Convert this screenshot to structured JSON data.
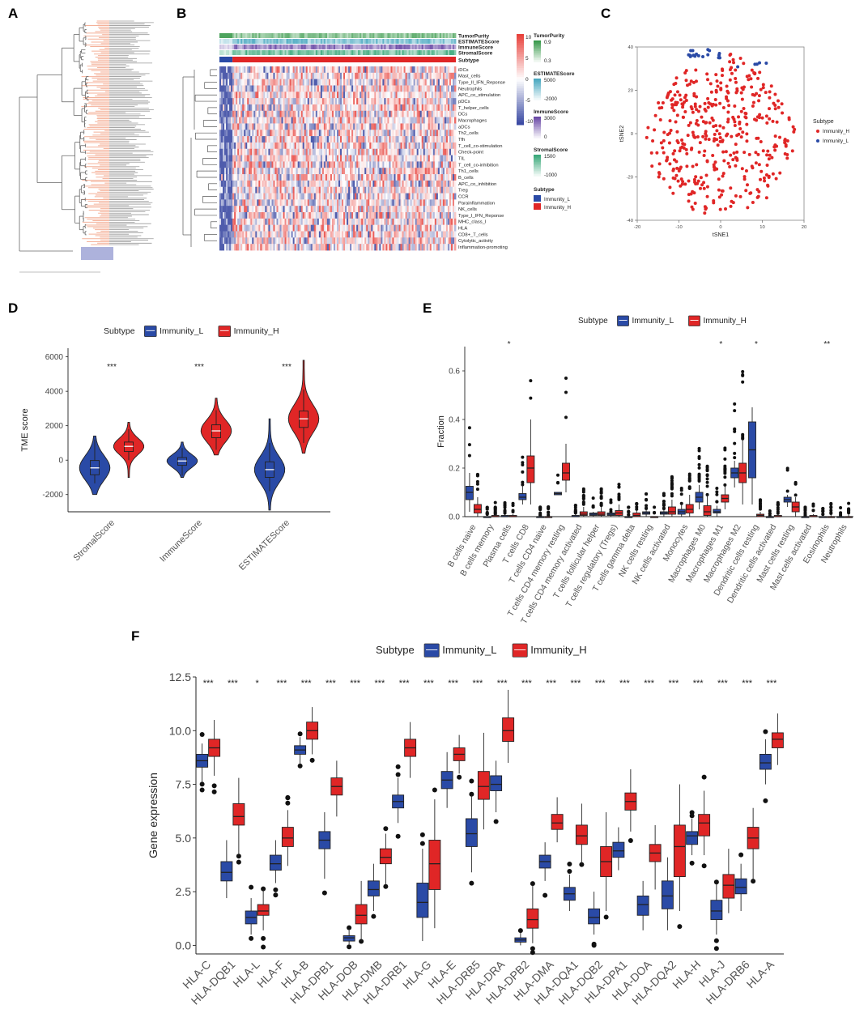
{
  "panel_labels": [
    "A",
    "B",
    "C",
    "D",
    "E",
    "F"
  ],
  "colors": {
    "low": "#2a4aa6",
    "high": "#e02626",
    "heat_low": "#3b4aa3",
    "heat_mid": "#ffffff",
    "heat_high": "#e8423c",
    "purity": "#3a9a4c",
    "estimate": "#4aa8c0",
    "immune": "#6a4aa6",
    "stromal": "#3aa87a",
    "tree_peach": "#f4b199",
    "tree_blue": "#7c83c6"
  },
  "panel_b": {
    "annotation_tracks": [
      "TumorPurity",
      "ESTIMATEScore",
      "ImmuneScore",
      "StromalScore",
      "Subtype"
    ],
    "rows": [
      "iDCs",
      "Mast_cells",
      "Type_II_IFN_Reponse",
      "Neutrophils",
      "APC_co_stimulation",
      "pDCs",
      "T_helper_cells",
      "DCs",
      "Macrophages",
      "aDCs",
      "Th2_cells",
      "Tfh",
      "T_cell_co-stimulation",
      "Check-point",
      "TIL",
      "T_cell_co-inhibition",
      "Th1_cells",
      "B_cells",
      "APC_co_inhibition",
      "Treg",
      "CCR",
      "Parainflammation",
      "NK_cells",
      "Type_I_IFN_Reponse",
      "MHC_class_I",
      "HLA",
      "CD8+_T_cells",
      "Cytolytic_activity",
      "Inflammation-promoting"
    ],
    "scale": {
      "ticks": [
        "10",
        "5",
        "0",
        "-5",
        "-10"
      ]
    },
    "legends": [
      {
        "title": "TumorPurity",
        "ticks": [
          "0.9",
          "0.3"
        ]
      },
      {
        "title": "ESTIMATEScore",
        "ticks": [
          "5000",
          "-2000"
        ]
      },
      {
        "title": "ImmuneScore",
        "ticks": [
          "3000",
          "0"
        ]
      },
      {
        "title": "StromalScore",
        "ticks": [
          "1500",
          "-1000"
        ]
      },
      {
        "title": "Subtype",
        "items": [
          "Immunity_L",
          "Immunity_H"
        ]
      }
    ]
  },
  "chart_data": [
    {
      "panel": "C",
      "type": "scatter",
      "xlabel": "tSNE1",
      "ylabel": "tSNE2",
      "xlim": [
        -20,
        20
      ],
      "ylim": [
        -40,
        40
      ],
      "xticks": [
        -20,
        -10,
        0,
        10,
        20
      ],
      "yticks": [
        -40,
        -20,
        0,
        20,
        40
      ],
      "legend_title": "Subtype",
      "series": [
        {
          "name": "Immunity_H",
          "color": "#e02626",
          "n_points": 430,
          "center": [
            0,
            -2
          ],
          "spread": [
            14,
            30
          ]
        },
        {
          "name": "Immunity_L",
          "color": "#2a4aa6",
          "n_points": 24,
          "center": [
            -4,
            37
          ],
          "spread": [
            4,
            2
          ]
        }
      ]
    },
    {
      "panel": "D",
      "type": "violin",
      "ylabel": "TME score",
      "ylim": [
        -3000,
        6500
      ],
      "yticks": [
        -2000,
        0,
        2000,
        4000,
        6000
      ],
      "legend_title": "Subtype",
      "legend_items": [
        "Immunity_L",
        "Immunity_H"
      ],
      "categories": [
        "StromalScore",
        "ImmuneScore",
        "ESTIMATEScore"
      ],
      "significance": [
        "***",
        "***",
        "***"
      ],
      "series": [
        {
          "name": "Immunity_L",
          "box": [
            [
              -1350,
              -850,
              -450,
              -20,
              1200
            ],
            [
              -900,
              -300,
              -50,
              150,
              700
            ],
            [
              -1800,
              -1000,
              -550,
              -100,
              1000
            ]
          ],
          "range": [
            [
              -2000,
              1400
            ],
            [
              -1000,
              1050
            ],
            [
              -2900,
              2400
            ]
          ]
        },
        {
          "name": "Immunity_H",
          "box": [
            [
              0,
              500,
              800,
              1050,
              1800
            ],
            [
              600,
              1300,
              1700,
              2050,
              2900
            ],
            [
              1000,
              1900,
              2400,
              2850,
              4100
            ]
          ],
          "range": [
            [
              -1000,
              2200
            ],
            [
              300,
              3600
            ],
            [
              400,
              5800
            ]
          ]
        }
      ]
    },
    {
      "panel": "E",
      "type": "box",
      "ylabel": "Fraction",
      "ylim": [
        0,
        0.7
      ],
      "yticks": [
        0.0,
        0.2,
        0.4,
        0.6
      ],
      "legend_title": "Subtype",
      "legend_items": [
        "Immunity_L",
        "Immunity_H"
      ],
      "categories": [
        "B cells naive",
        "B cells memory",
        "Plasma cells",
        "T cells CD8",
        "T cells CD4 naive",
        "T cells CD4 memory resting",
        "T cells CD4 memory activated",
        "T cells follicular helper",
        "T cells regulatory (Tregs)",
        "T cells gamma delta",
        "NK cells resting",
        "NK cells activated",
        "Monocytes",
        "Macrophages M0",
        "Macrophages M1",
        "Macrophages M2",
        "Dendritic cells resting",
        "Dendritic cells activated",
        "Mast cells resting",
        "Mast cells activated",
        "Eosinophils",
        "Neutrophils"
      ],
      "significance": [
        "",
        "",
        "*",
        "",
        "",
        "",
        "",
        "",
        "",
        "",
        "",
        "",
        "",
        "",
        "*",
        "",
        "*",
        "",
        "",
        "",
        "**",
        ""
      ],
      "series": [
        {
          "name": "Immunity_L",
          "box": [
            [
              0.02,
              0.07,
              0.1,
              0.125,
              0.18
            ],
            [
              0,
              0,
              0,
              0,
              0
            ],
            [
              0,
              0,
              0,
              0.005,
              0.01
            ],
            [
              0.05,
              0.07,
              0.08,
              0.095,
              0.13
            ],
            [
              0,
              0,
              0,
              0,
              0
            ],
            [
              0.09,
              0.09,
              0.095,
              0.1,
              0.1
            ],
            [
              0,
              0,
              0,
              0.005,
              0.01
            ],
            [
              0,
              0.005,
              0.01,
              0.015,
              0.02
            ],
            [
              0,
              0.005,
              0.01,
              0.015,
              0.02
            ],
            [
              0,
              0,
              0,
              0,
              0
            ],
            [
              0,
              0.01,
              0.015,
              0.02,
              0.03
            ],
            [
              0,
              0.01,
              0.015,
              0.02,
              0.03
            ],
            [
              0,
              0.01,
              0.02,
              0.03,
              0.05
            ],
            [
              0.03,
              0.06,
              0.08,
              0.1,
              0.13
            ],
            [
              0,
              0.015,
              0.02,
              0.03,
              0.045
            ],
            [
              0.12,
              0.16,
              0.18,
              0.2,
              0.23
            ],
            [
              0.05,
              0.16,
              0.275,
              0.39,
              0.45
            ],
            [
              0,
              0,
              0,
              0,
              0
            ],
            [
              0.04,
              0.06,
              0.07,
              0.08,
              0.09
            ],
            [
              0,
              0,
              0,
              0,
              0
            ],
            [
              0,
              0,
              0,
              0,
              0
            ],
            [
              0,
              0,
              0,
              0,
              0
            ]
          ]
        },
        {
          "name": "Immunity_H",
          "box": [
            [
              0,
              0.015,
              0.03,
              0.05,
              0.08
            ],
            [
              0,
              0,
              0,
              0.005,
              0.01
            ],
            [
              0,
              0,
              0,
              0.005,
              0.01
            ],
            [
              0.05,
              0.14,
              0.2,
              0.25,
              0.4
            ],
            [
              0,
              0,
              0,
              0,
              0
            ],
            [
              0.1,
              0.15,
              0.18,
              0.22,
              0.3
            ],
            [
              0,
              0.005,
              0.01,
              0.02,
              0.04
            ],
            [
              0,
              0.005,
              0.01,
              0.02,
              0.04
            ],
            [
              0,
              0.005,
              0.015,
              0.025,
              0.05
            ],
            [
              0,
              0,
              0.005,
              0.015,
              0.03
            ],
            [
              0,
              0,
              0,
              0,
              0
            ],
            [
              0,
              0.01,
              0.02,
              0.04,
              0.07
            ],
            [
              0,
              0.015,
              0.03,
              0.05,
              0.09
            ],
            [
              0,
              0.005,
              0.02,
              0.045,
              0.09
            ],
            [
              0.03,
              0.06,
              0.075,
              0.09,
              0.13
            ],
            [
              0.05,
              0.14,
              0.18,
              0.22,
              0.32
            ],
            [
              0,
              0,
              0.005,
              0.01,
              0.02
            ],
            [
              0,
              0,
              0,
              0.005,
              0.01
            ],
            [
              0,
              0.02,
              0.04,
              0.06,
              0.08
            ],
            [
              0,
              0,
              0,
              0.005,
              0.01
            ],
            [
              0,
              0,
              0,
              0,
              0.01
            ],
            [
              0,
              0,
              0,
              0,
              0.01
            ]
          ]
        }
      ]
    },
    {
      "panel": "F",
      "type": "box",
      "ylabel": "Gene expression",
      "ylim": [
        -0.4,
        12.5
      ],
      "yticks": [
        0.0,
        2.5,
        5.0,
        7.5,
        10.0,
        12.5
      ],
      "ytick_labels": [
        "0.0",
        "2.5",
        "5.0",
        "7.5",
        "10.0",
        "12.5"
      ],
      "legend_title": "Subtype",
      "legend_items": [
        "Immunity_L",
        "Immunity_H"
      ],
      "categories": [
        "HLA-C",
        "HLA-DQB1",
        "HLA-L",
        "HLA-F",
        "HLA-B",
        "HLA-DPB1",
        "HLA-DOB",
        "HLA-DMB",
        "HLA-DRB1",
        "HLA-G",
        "HLA-E",
        "HLA-DRB5",
        "HLA-DRA",
        "HLA-DPB2",
        "HLA-DMA",
        "HLA-DQA1",
        "HLA-DQB2",
        "HLA-DPA1",
        "HLA-DOA",
        "HLA-DQA2",
        "HLA-H",
        "HLA-J",
        "HLA-DRB6",
        "HLA-A"
      ],
      "significance": [
        "***",
        "***",
        "*",
        "***",
        "***",
        "***",
        "***",
        "***",
        "***",
        "***",
        "***",
        "***",
        "***",
        "***",
        "***",
        "***",
        "***",
        "***",
        "***",
        "***",
        "***",
        "***",
        "***",
        "***"
      ],
      "series": [
        {
          "name": "Immunity_L",
          "box": [
            [
              7.6,
              8.3,
              8.6,
              8.9,
              9.4
            ],
            [
              2.2,
              3.0,
              3.4,
              3.9,
              4.9
            ],
            [
              0.5,
              1.0,
              1.3,
              1.6,
              2.2
            ],
            [
              2.9,
              3.5,
              3.8,
              4.2,
              4.9
            ],
            [
              8.4,
              8.9,
              9.1,
              9.3,
              9.7
            ],
            [
              3.1,
              4.5,
              4.9,
              5.3,
              6.2
            ],
            [
              0.05,
              0.2,
              0.35,
              0.45,
              0.7
            ],
            [
              1.6,
              2.3,
              2.6,
              3.0,
              3.8
            ],
            [
              5.7,
              6.4,
              6.7,
              7.0,
              7.8
            ],
            [
              0.2,
              1.3,
              2.0,
              2.9,
              4.5
            ],
            [
              6.4,
              7.3,
              7.7,
              8.1,
              9.0
            ],
            [
              3.4,
              4.6,
              5.2,
              5.9,
              7.0
            ],
            [
              6.2,
              7.2,
              7.5,
              7.9,
              8.6
            ],
            [
              0,
              0.15,
              0.25,
              0.35,
              0.6
            ],
            [
              3.0,
              3.6,
              3.9,
              4.2,
              4.8
            ],
            [
              1.6,
              2.1,
              2.4,
              2.7,
              3.3
            ],
            [
              0.5,
              1.0,
              1.3,
              1.7,
              2.5
            ],
            [
              3.5,
              4.1,
              4.4,
              4.8,
              5.5
            ],
            [
              0.7,
              1.4,
              1.9,
              2.3,
              3.0
            ],
            [
              0.7,
              1.7,
              2.3,
              3.0,
              4.1
            ],
            [
              4.2,
              4.7,
              5.1,
              5.3,
              5.9
            ],
            [
              0.5,
              1.2,
              1.6,
              2.1,
              2.9
            ],
            [
              1.6,
              2.4,
              2.7,
              3.1,
              3.8
            ],
            [
              7.5,
              8.2,
              8.5,
              8.9,
              9.6
            ]
          ]
        },
        {
          "name": "Immunity_H",
          "box": [
            [
              7.9,
              8.8,
              9.2,
              9.6,
              10.5
            ],
            [
              4.2,
              5.6,
              6.0,
              6.6,
              7.8
            ],
            [
              0.7,
              1.4,
              1.6,
              1.9,
              2.6
            ],
            [
              3.7,
              4.6,
              5.0,
              5.5,
              6.3
            ],
            [
              8.9,
              9.6,
              10.0,
              10.4,
              11.1
            ],
            [
              6.0,
              7.0,
              7.4,
              7.8,
              8.6
            ],
            [
              0.2,
              1.0,
              1.4,
              1.9,
              3.0
            ],
            [
              2.8,
              3.8,
              4.1,
              4.5,
              5.2
            ],
            [
              7.8,
              8.8,
              9.2,
              9.6,
              10.4
            ],
            [
              0.8,
              2.6,
              3.8,
              4.9,
              6.8
            ],
            [
              8.0,
              8.6,
              8.9,
              9.2,
              9.8
            ],
            [
              5.4,
              6.8,
              7.4,
              8.1,
              9.9
            ],
            [
              8.5,
              9.5,
              10.0,
              10.6,
              11.9
            ],
            [
              0.1,
              0.8,
              1.2,
              1.7,
              2.8
            ],
            [
              4.8,
              5.4,
              5.7,
              6.1,
              6.9
            ],
            [
              3.8,
              4.7,
              5.1,
              5.6,
              6.6
            ],
            [
              1.6,
              3.2,
              3.9,
              4.6,
              6.2
            ],
            [
              5.3,
              6.3,
              6.7,
              7.1,
              8.2
            ],
            [
              2.6,
              3.9,
              4.3,
              4.7,
              5.6
            ],
            [
              1.6,
              3.2,
              4.6,
              5.6,
              7.5
            ],
            [
              4.2,
              5.1,
              5.7,
              6.1,
              7.2
            ],
            [
              1.5,
              2.2,
              2.8,
              3.3,
              4.5
            ],
            [
              3.0,
              4.5,
              5.0,
              5.5,
              6.4
            ],
            [
              8.4,
              9.2,
              9.6,
              9.9,
              10.8
            ]
          ]
        }
      ]
    }
  ]
}
